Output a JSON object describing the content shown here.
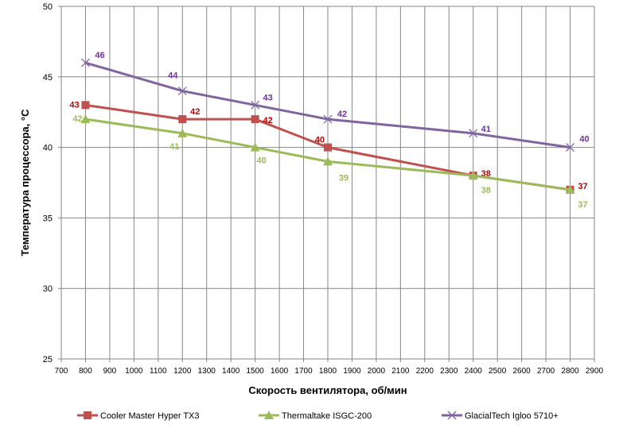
{
  "chart_data": {
    "type": "line",
    "title": "",
    "xlabel": "Скорость вентилятора, об/мин",
    "ylabel": "Температура процессора, °C",
    "xlim": [
      700,
      2900
    ],
    "ylim": [
      25,
      50
    ],
    "xticks": [
      700,
      800,
      900,
      1000,
      1100,
      1200,
      1300,
      1400,
      1500,
      1600,
      1700,
      1800,
      1900,
      2000,
      2100,
      2200,
      2300,
      2400,
      2500,
      2600,
      2700,
      2800,
      2900
    ],
    "yticks": [
      25,
      30,
      35,
      40,
      45,
      50
    ],
    "grid": true,
    "legend_position": "bottom",
    "x": [
      800,
      1200,
      1500,
      1800,
      2400,
      2800
    ],
    "series": [
      {
        "name": "Cooler Master Hyper TX3",
        "values": [
          43,
          42,
          42,
          40,
          38,
          37
        ],
        "color": "#C0504D",
        "label_color": "#C00000",
        "marker": "square"
      },
      {
        "name": "Thermaltake ISGC-200",
        "values": [
          42,
          41,
          40,
          39,
          38,
          37
        ],
        "color": "#9BBB59",
        "label_color": "#9BBB59",
        "marker": "triangle"
      },
      {
        "name": "GlacialTech Igloo 5710+",
        "values": [
          46,
          44,
          43,
          42,
          41,
          40
        ],
        "color": "#8064A2",
        "label_color": "#7030A0",
        "marker": "x"
      }
    ]
  }
}
